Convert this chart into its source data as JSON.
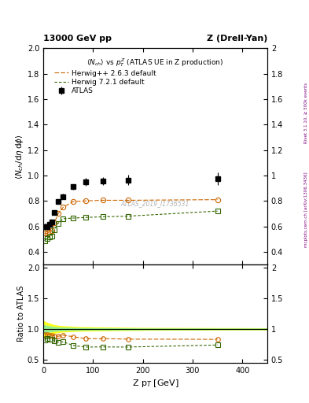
{
  "title_left": "13000 GeV pp",
  "title_right": "Z (Drell-Yan)",
  "inner_title": "<N_{ch}> vs p_{T}^{Z} (ATLAS UE in Z production)",
  "ylabel_main": "<N_{ch}/dη dφ>",
  "ylabel_ratio": "Ratio to ATLAS",
  "xlabel": "Z p_{T} [GeV]",
  "right_label": "mcplots.cern.ch [arXiv:1306.3436]",
  "right_label2": "Rivet 3.1.10, ≥ 500k events",
  "watermark": "ATLAS_2019_I1736531",
  "atlas_x": [
    2.5,
    7.5,
    12.5,
    17.5,
    22.5,
    30,
    40,
    60,
    85,
    120,
    170,
    350
  ],
  "atlas_y": [
    0.595,
    0.595,
    0.615,
    0.635,
    0.71,
    0.795,
    0.835,
    0.91,
    0.95,
    0.955,
    0.965,
    0.975
  ],
  "atlas_yerr": [
    0.025,
    0.02,
    0.015,
    0.015,
    0.02,
    0.02,
    0.02,
    0.02,
    0.03,
    0.03,
    0.04,
    0.05
  ],
  "herwig1_x": [
    2.5,
    7.5,
    12.5,
    17.5,
    22.5,
    30,
    40,
    60,
    85,
    120,
    170,
    350
  ],
  "herwig1_y": [
    0.545,
    0.545,
    0.555,
    0.565,
    0.63,
    0.7,
    0.75,
    0.795,
    0.8,
    0.805,
    0.805,
    0.81
  ],
  "herwig1_color": "#cc6600",
  "herwig1_label": "Herwig++ 2.6.3 default",
  "herwig2_x": [
    2.5,
    7.5,
    12.5,
    17.5,
    22.5,
    30,
    40,
    60,
    85,
    120,
    170,
    350
  ],
  "herwig2_y": [
    0.485,
    0.505,
    0.515,
    0.525,
    0.575,
    0.625,
    0.66,
    0.665,
    0.67,
    0.675,
    0.68,
    0.72
  ],
  "herwig2_color": "#336600",
  "herwig2_label": "Herwig 7.2.1 default",
  "ratio1_y": [
    0.915,
    0.915,
    0.902,
    0.89,
    0.887,
    0.88,
    0.898,
    0.874,
    0.842,
    0.843,
    0.834,
    0.831
  ],
  "ratio2_y": [
    0.814,
    0.848,
    0.838,
    0.827,
    0.81,
    0.785,
    0.79,
    0.731,
    0.705,
    0.707,
    0.705,
    0.738
  ],
  "band_x": [
    0,
    5,
    10,
    15,
    20,
    30,
    45,
    70,
    100,
    150,
    200,
    450
  ],
  "band_yellow_upper": [
    1.13,
    1.11,
    1.09,
    1.08,
    1.065,
    1.05,
    1.04,
    1.03,
    1.025,
    1.02,
    1.015,
    1.01
  ],
  "band_yellow_lower": [
    0.87,
    0.89,
    0.91,
    0.92,
    0.935,
    0.95,
    0.96,
    0.97,
    0.975,
    0.98,
    0.985,
    0.99
  ],
  "band_green_upper": [
    1.065,
    1.055,
    1.045,
    1.04,
    1.033,
    1.025,
    1.02,
    1.015,
    1.012,
    1.01,
    1.007,
    1.005
  ],
  "band_green_lower": [
    0.935,
    0.945,
    0.955,
    0.96,
    0.967,
    0.975,
    0.98,
    0.985,
    0.988,
    0.99,
    0.993,
    0.995
  ],
  "xlim": [
    0,
    450
  ],
  "ylim_main": [
    0.3,
    2.0
  ],
  "ylim_ratio": [
    0.45,
    2.05
  ],
  "yticks_main": [
    0.4,
    0.6,
    0.8,
    1.0,
    1.2,
    1.4,
    1.6,
    1.8,
    2.0
  ],
  "yticks_ratio": [
    0.5,
    1.0,
    1.5,
    2.0
  ],
  "xticks": [
    0,
    100,
    200,
    300,
    400
  ]
}
